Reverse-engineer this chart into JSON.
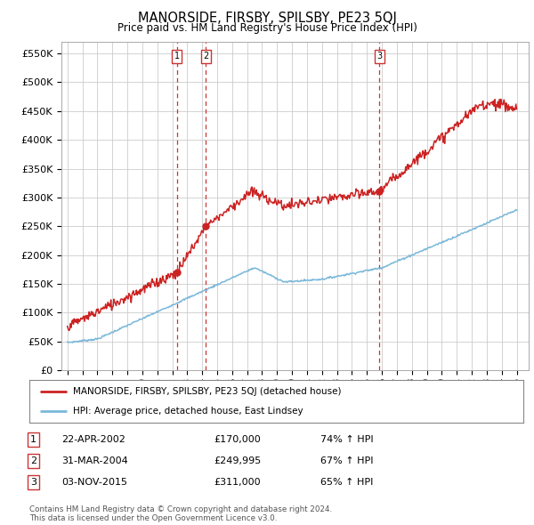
{
  "title": "MANORSIDE, FIRSBY, SPILSBY, PE23 5QJ",
  "subtitle": "Price paid vs. HM Land Registry's House Price Index (HPI)",
  "ylabel_ticks": [
    "£0",
    "£50K",
    "£100K",
    "£150K",
    "£200K",
    "£250K",
    "£300K",
    "£350K",
    "£400K",
    "£450K",
    "£500K",
    "£550K"
  ],
  "ytick_values": [
    0,
    50000,
    100000,
    150000,
    200000,
    250000,
    300000,
    350000,
    400000,
    450000,
    500000,
    550000
  ],
  "ylim": [
    0,
    570000
  ],
  "sale_dates": [
    2002.31,
    2004.25,
    2015.84
  ],
  "sale_prices": [
    170000,
    249995,
    311000
  ],
  "sale_labels": [
    "1",
    "2",
    "3"
  ],
  "sale_label_info": [
    {
      "num": "1",
      "date": "22-APR-2002",
      "price": "£170,000",
      "pct": "74% ↑ HPI"
    },
    {
      "num": "2",
      "date": "31-MAR-2004",
      "price": "£249,995",
      "pct": "67% ↑ HPI"
    },
    {
      "num": "3",
      "date": "03-NOV-2015",
      "price": "£311,000",
      "pct": "65% ↑ HPI"
    }
  ],
  "hpi_color": "#7ab8d9",
  "sale_color": "#cc2222",
  "dashed_vline_color": "#cc3333",
  "legend_label_sale": "MANORSIDE, FIRSBY, SPILSBY, PE23 5QJ (detached house)",
  "legend_label_hpi": "HPI: Average price, detached house, East Lindsey",
  "footnote": "Contains HM Land Registry data © Crown copyright and database right 2024.\nThis data is licensed under the Open Government Licence v3.0.",
  "background_color": "#ffffff",
  "grid_color": "#cccccc"
}
